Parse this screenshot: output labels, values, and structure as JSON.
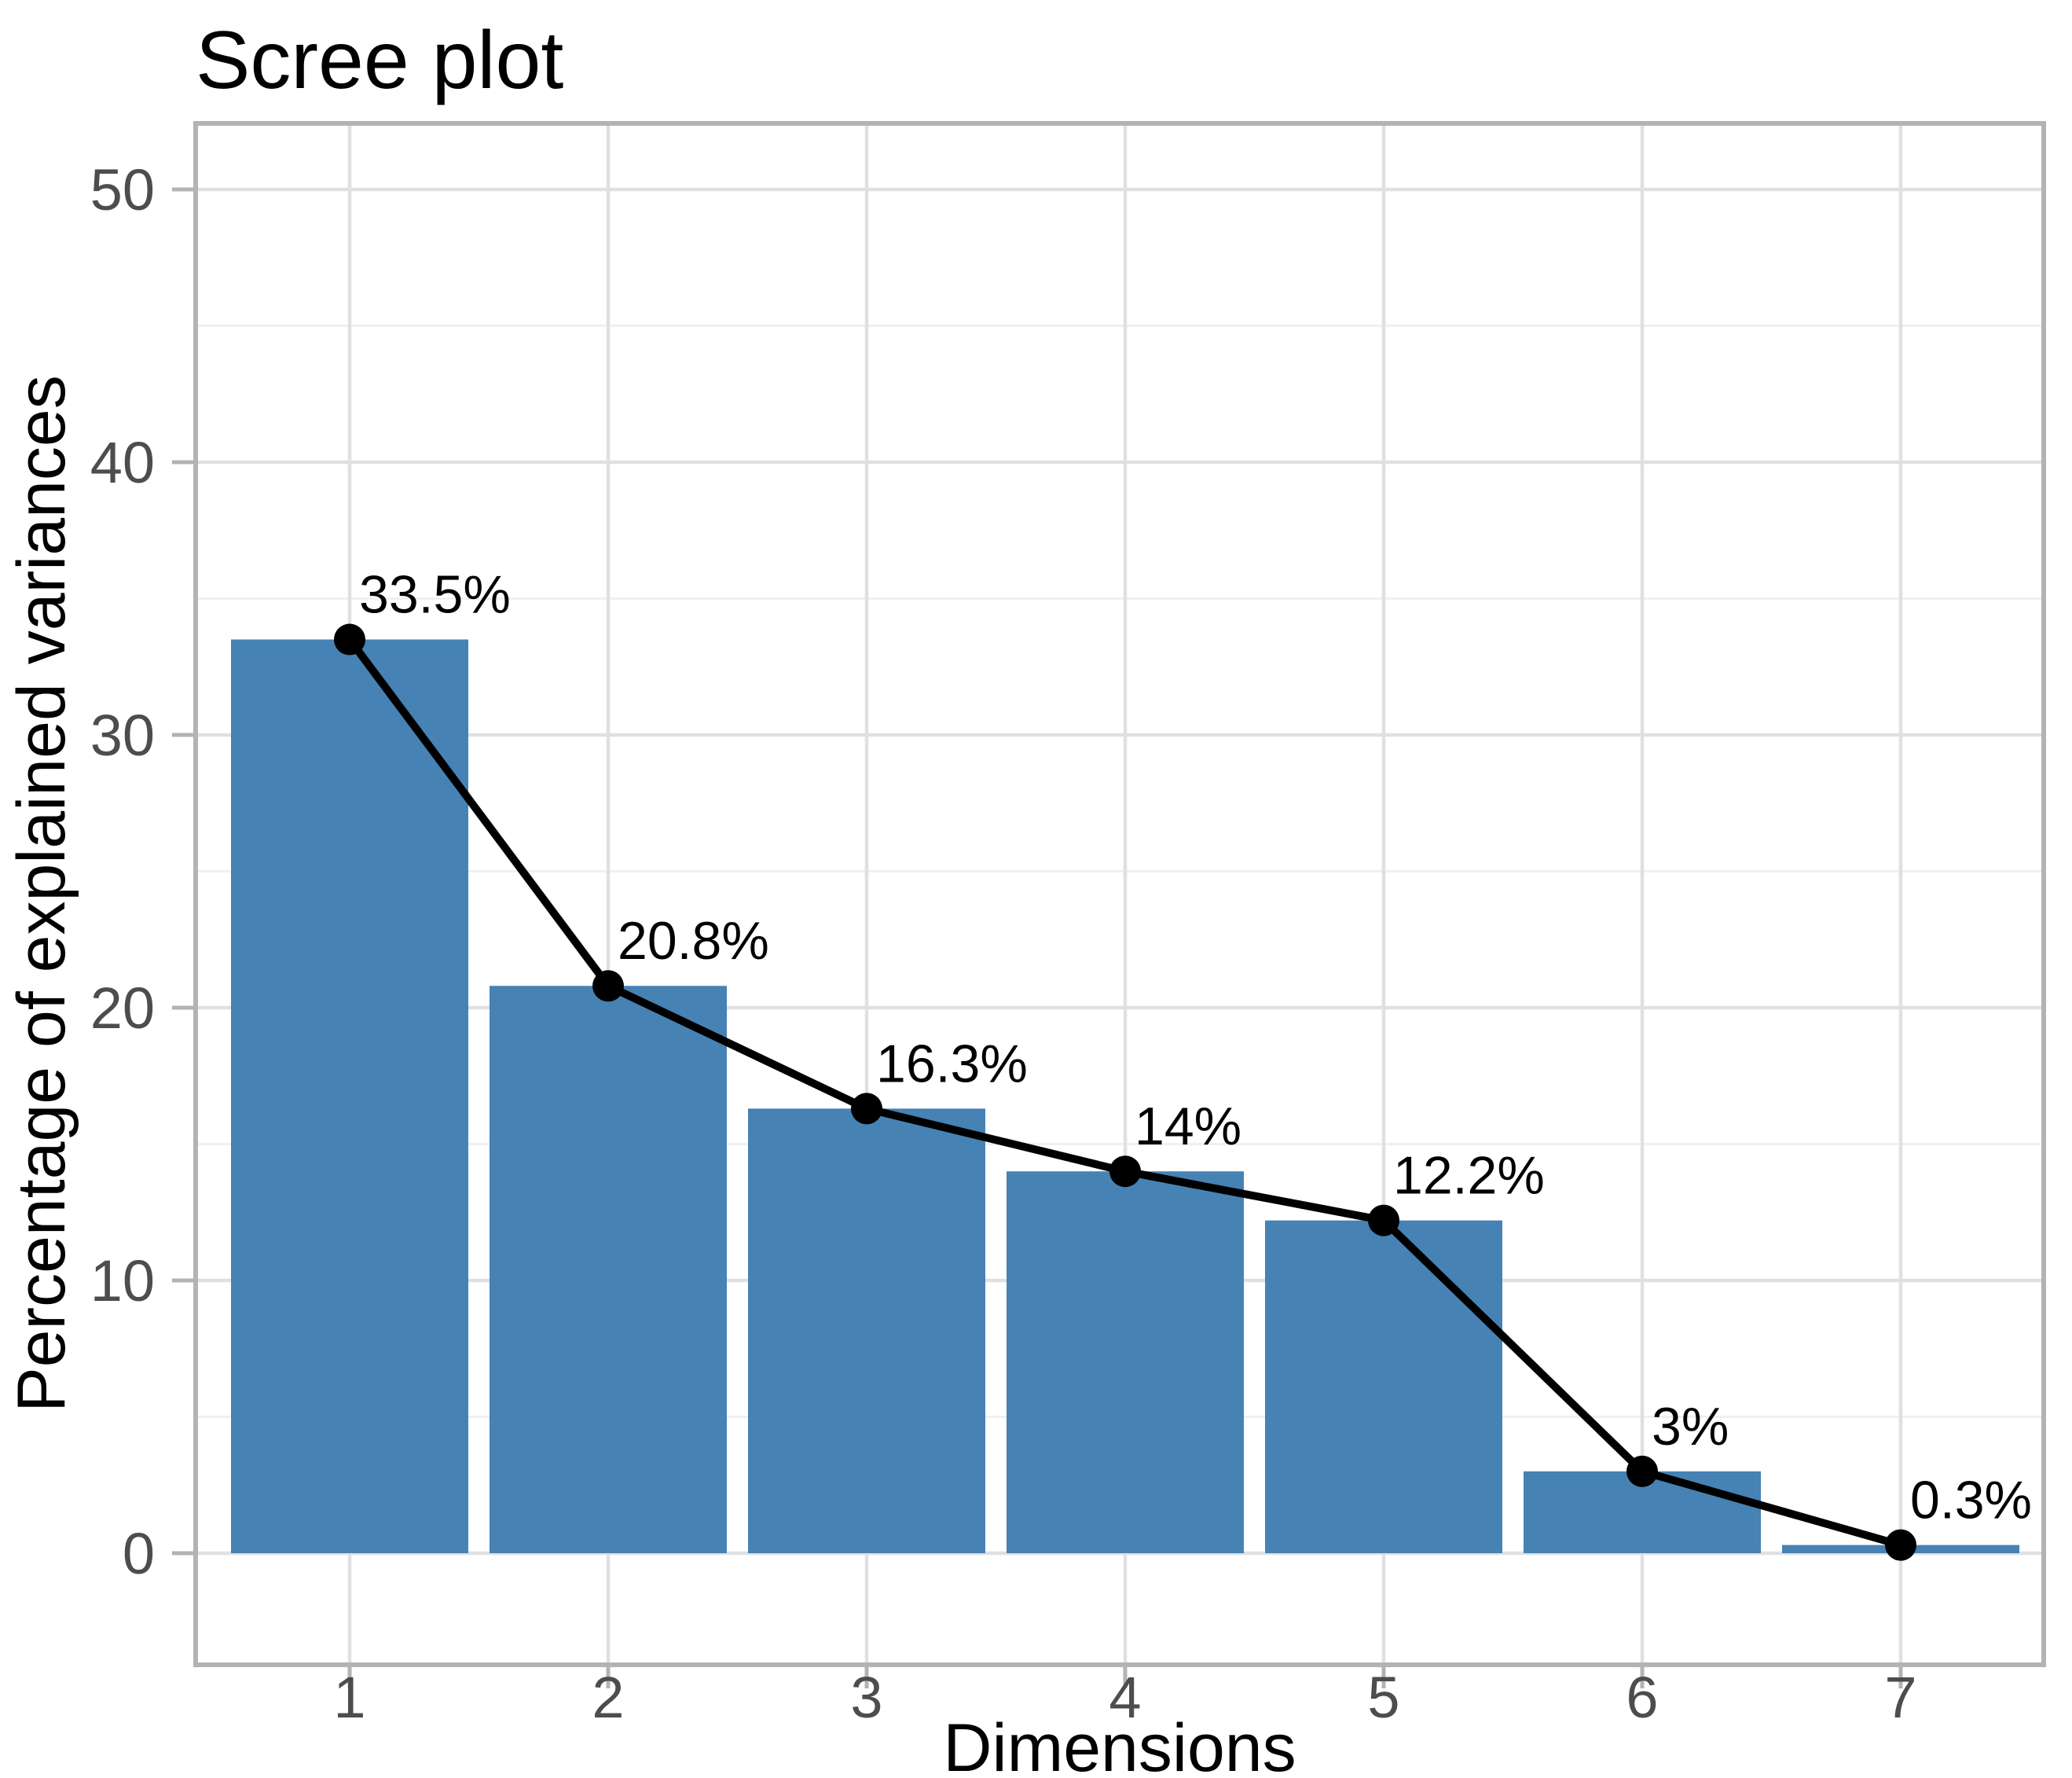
{
  "chart_data": {
    "type": "bar+line (scree plot)",
    "title": "Scree plot",
    "xlabel": "Dimensions",
    "ylabel": "Percentage of explained variances",
    "categories": [
      "1",
      "2",
      "3",
      "4",
      "5",
      "6",
      "7"
    ],
    "values": [
      33.5,
      20.8,
      16.3,
      14,
      12.2,
      3,
      0.3
    ],
    "point_labels": [
      "33.5%",
      "20.8%",
      "16.3%",
      "14%",
      "12.2%",
      "3%",
      "0.3%"
    ],
    "y_ticks": [
      0,
      10,
      20,
      30,
      40,
      50
    ],
    "y_minor_ticks": [
      5,
      15,
      25,
      35,
      45
    ],
    "ylim": [
      -4.1,
      52.4
    ],
    "xlim": [
      0.4,
      7.6
    ],
    "grid": "major and minor horizontal, major vertical, no legend",
    "legend": false,
    "colors": {
      "bar_fill": "#4682B4",
      "line": "#000000",
      "point": "#000000",
      "grid_major": "#E0E0E0",
      "grid_minor": "#F0F0F0",
      "panel_border": "#B3B3B3",
      "axis_tick": "#B3B3B3",
      "tick_label_text": "#4D4D4D",
      "text": "#000000",
      "background": "#FFFFFF"
    }
  }
}
